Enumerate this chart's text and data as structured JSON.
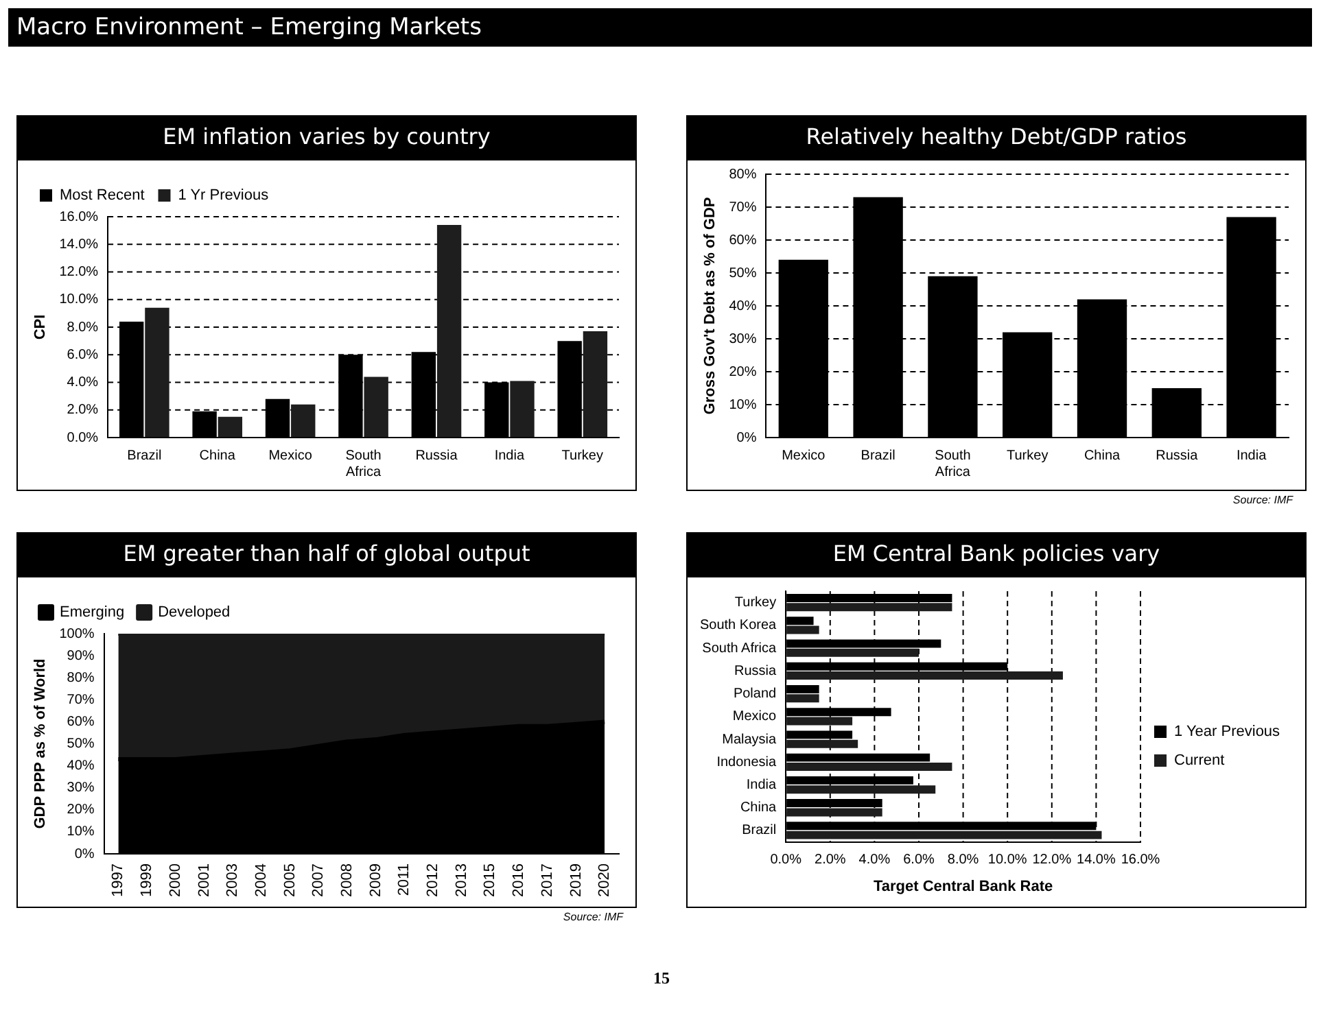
{
  "chart_data": [
    {
      "type": "bar",
      "title": "EM inflation varies by country",
      "ylabel": "CPI",
      "categories": [
        "Brazil",
        "China",
        "Mexico",
        "South Africa",
        "Russia",
        "India",
        "Turkey"
      ],
      "series": [
        {
          "name": "Most Recent",
          "color": "#000000",
          "values": [
            8.4,
            1.9,
            2.8,
            6.0,
            6.2,
            4.0,
            7.0
          ]
        },
        {
          "name": "1 Yr Previous",
          "color": "#1e1e1e",
          "values": [
            9.4,
            1.5,
            2.4,
            4.4,
            15.4,
            4.1,
            7.7
          ]
        }
      ],
      "ylim": [
        0,
        16
      ],
      "yticks": [
        {
          "value": 0,
          "label": "0.0%"
        },
        {
          "value": 2,
          "label": "2.0%"
        },
        {
          "value": 4,
          "label": "4.0%"
        },
        {
          "value": 6,
          "label": "6.0%"
        },
        {
          "value": 8,
          "label": "8.0%"
        },
        {
          "value": 10,
          "label": "10.0%"
        },
        {
          "value": 12,
          "label": "12.0%"
        },
        {
          "value": 14,
          "label": "14.0%"
        },
        {
          "value": 16,
          "label": "16.0%"
        }
      ],
      "grid": "y",
      "legend": "top left",
      "annotations": [
        "Macro Environment – Emerging Markets",
        "15"
      ]
    },
    {
      "type": "bar",
      "title": "Relatively healthy Debt/GDP ratios",
      "ylabel": "Gross Gov't Debt as % of GDP",
      "categories": [
        "Mexico",
        "Brazil",
        "South Africa",
        "Turkey",
        "China",
        "Russia",
        "India"
      ],
      "values": [
        54,
        73,
        49,
        32,
        42,
        15,
        67
      ],
      "color": "#000000",
      "ylim": [
        0,
        80
      ],
      "yticks": [
        {
          "value": 0,
          "label": "0%"
        },
        {
          "value": 10,
          "label": "10%"
        },
        {
          "value": 20,
          "label": "20%"
        },
        {
          "value": 30,
          "label": "30%"
        },
        {
          "value": 40,
          "label": "40%"
        },
        {
          "value": 50,
          "label": "50%"
        },
        {
          "value": 60,
          "label": "60%"
        },
        {
          "value": 70,
          "label": "70%"
        },
        {
          "value": 80,
          "label": "80%"
        }
      ],
      "grid": "y",
      "annotations": [
        "Source: IMF"
      ]
    },
    {
      "type": "area",
      "title": "EM greater than half of global output",
      "ylabel": "GDP PPP as % of World",
      "stacked": true,
      "categories": [
        "1997",
        "1999",
        "2000",
        "2001",
        "2003",
        "2004",
        "2005",
        "2007",
        "2008",
        "2009",
        "2011",
        "2012",
        "2013",
        "2015",
        "2016",
        "2017",
        "2019",
        "2020"
      ],
      "series": [
        {
          "name": "Emerging",
          "color": "#000000",
          "values": [
            43,
            43,
            43,
            44,
            45,
            46,
            47,
            49,
            51,
            52,
            54,
            55,
            56,
            57,
            58,
            58,
            59,
            60
          ]
        },
        {
          "name": "Developed",
          "color": "#1a1a1a",
          "values": [
            57,
            57,
            57,
            56,
            55,
            54,
            53,
            51,
            49,
            48,
            46,
            45,
            44,
            43,
            42,
            42,
            41,
            40
          ]
        }
      ],
      "ylim": [
        0,
        100
      ],
      "yticks": [
        {
          "value": 0,
          "label": "0%"
        },
        {
          "value": 10,
          "label": "10%"
        },
        {
          "value": 20,
          "label": "20%"
        },
        {
          "value": 30,
          "label": "30%"
        },
        {
          "value": 40,
          "label": "40%"
        },
        {
          "value": 50,
          "label": "50%"
        },
        {
          "value": 60,
          "label": "60%"
        },
        {
          "value": 70,
          "label": "70%"
        },
        {
          "value": 80,
          "label": "80%"
        },
        {
          "value": 90,
          "label": "90%"
        },
        {
          "value": 100,
          "label": "100%"
        }
      ],
      "legend": "top left",
      "annotations": [
        "Source: IMF"
      ]
    },
    {
      "type": "bar",
      "title": "EM Central Bank policies vary",
      "xlabel": "Target Central Bank Rate",
      "orientation": "horizontal",
      "categories": [
        "Turkey",
        "South Korea",
        "South Africa",
        "Russia",
        "Poland",
        "Mexico",
        "Malaysia",
        "Indonesia",
        "India",
        "China",
        "Brazil"
      ],
      "series": [
        {
          "name": "1 Year Previous",
          "color": "#000000",
          "values": [
            7.5,
            1.25,
            7.0,
            10.0,
            1.5,
            4.75,
            3.0,
            6.5,
            5.75,
            4.35,
            14.0
          ]
        },
        {
          "name": "Current",
          "color": "#1e1e1e",
          "values": [
            7.5,
            1.5,
            6.0,
            12.5,
            1.5,
            3.0,
            3.25,
            7.5,
            6.75,
            4.35,
            14.25
          ]
        }
      ],
      "xlim": [
        0,
        16
      ],
      "xticks": [
        {
          "value": 0,
          "label": "0.0%"
        },
        {
          "value": 2,
          "label": "2.0%"
        },
        {
          "value": 4,
          "label": "4.0%"
        },
        {
          "value": 6,
          "label": "6.0%"
        },
        {
          "value": 8,
          "label": "8.0%"
        },
        {
          "value": 10,
          "label": "10.0%"
        },
        {
          "value": 12,
          "label": "12.0%"
        },
        {
          "value": 14,
          "label": "14.0%"
        },
        {
          "value": 16,
          "label": "16.0%"
        }
      ],
      "grid": "x",
      "legend": "right"
    }
  ]
}
